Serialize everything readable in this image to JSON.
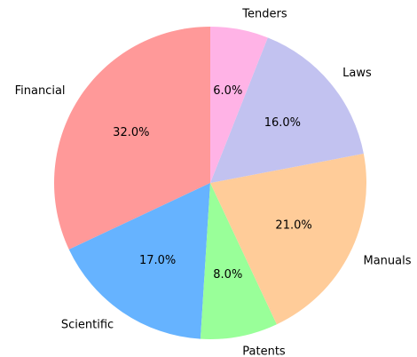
{
  "chart_data": {
    "type": "pie",
    "categories": [
      "Financial",
      "Scientific",
      "Patents",
      "Manuals",
      "Laws",
      "Tenders"
    ],
    "values": [
      32,
      17,
      8,
      21,
      16,
      6
    ],
    "value_labels": [
      "32.0%",
      "17.0%",
      "8.0%",
      "21.0%",
      "16.0%",
      "6.0%"
    ],
    "colors": [
      "#ff9999",
      "#66b3ff",
      "#99ff99",
      "#ffcc99",
      "#c2c2f0",
      "#ffb3e6"
    ]
  }
}
